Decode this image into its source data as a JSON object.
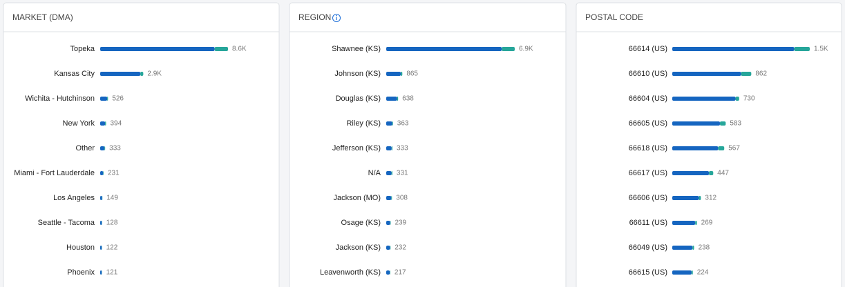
{
  "chart_data": [
    {
      "type": "stacked-hbar",
      "title": "MARKET (DMA)",
      "categories": [
        "Topeka",
        "Kansas City",
        "Wichita - Hutchinson",
        "New York",
        "Other",
        "Miami - Fort Lauderdale",
        "Los Angeles",
        "Seattle - Tacoma",
        "Houston",
        "Phoenix"
      ],
      "values": [
        8600,
        2900,
        526,
        394,
        333,
        231,
        149,
        128,
        122,
        121
      ],
      "value_labels": [
        "8.6K",
        "2.9K",
        "526",
        "394",
        "333",
        "231",
        "149",
        "128",
        "122",
        "121"
      ],
      "series": [
        {
          "color": "#1565c0",
          "values": [
            7700,
            2700,
            470,
            330,
            290,
            200,
            130,
            110,
            105,
            105
          ]
        },
        {
          "color": "#26a69a",
          "values": [
            900,
            200,
            56,
            64,
            43,
            31,
            19,
            18,
            17,
            16
          ]
        }
      ]
    },
    {
      "type": "stacked-hbar",
      "title": "REGION",
      "categories": [
        "Shawnee (KS)",
        "Johnson (KS)",
        "Douglas (KS)",
        "Riley (KS)",
        "Jefferson (KS)",
        "N/A",
        "Jackson (MO)",
        "Osage (KS)",
        "Jackson (KS)",
        "Leavenworth (KS)"
      ],
      "values": [
        6900,
        865,
        638,
        363,
        333,
        331,
        308,
        239,
        232,
        217
      ],
      "value_labels": [
        "6.9K",
        "865",
        "638",
        "363",
        "333",
        "331",
        "308",
        "239",
        "232",
        "217"
      ],
      "series": [
        {
          "color": "#1565c0",
          "values": [
            6200,
            780,
            580,
            320,
            290,
            280,
            270,
            210,
            200,
            190
          ]
        },
        {
          "color": "#26a69a",
          "values": [
            700,
            85,
            58,
            43,
            43,
            51,
            38,
            29,
            32,
            27
          ]
        }
      ]
    },
    {
      "type": "stacked-hbar",
      "title": "POSTAL CODE",
      "categories": [
        "66614 (US)",
        "66610 (US)",
        "66604 (US)",
        "66605 (US)",
        "66618 (US)",
        "66617 (US)",
        "66606 (US)",
        "66611 (US)",
        "66049 (US)",
        "66615 (US)"
      ],
      "values": [
        1500,
        862,
        730,
        583,
        567,
        447,
        312,
        269,
        238,
        224
      ],
      "value_labels": [
        "1.5K",
        "862",
        "730",
        "583",
        "567",
        "447",
        "312",
        "269",
        "238",
        "224"
      ],
      "series": [
        {
          "color": "#1565c0",
          "values": [
            1330,
            750,
            690,
            520,
            500,
            400,
            290,
            250,
            220,
            210
          ]
        },
        {
          "color": "#26a69a",
          "values": [
            170,
            112,
            40,
            63,
            67,
            47,
            22,
            19,
            18,
            14
          ]
        }
      ]
    }
  ]
}
